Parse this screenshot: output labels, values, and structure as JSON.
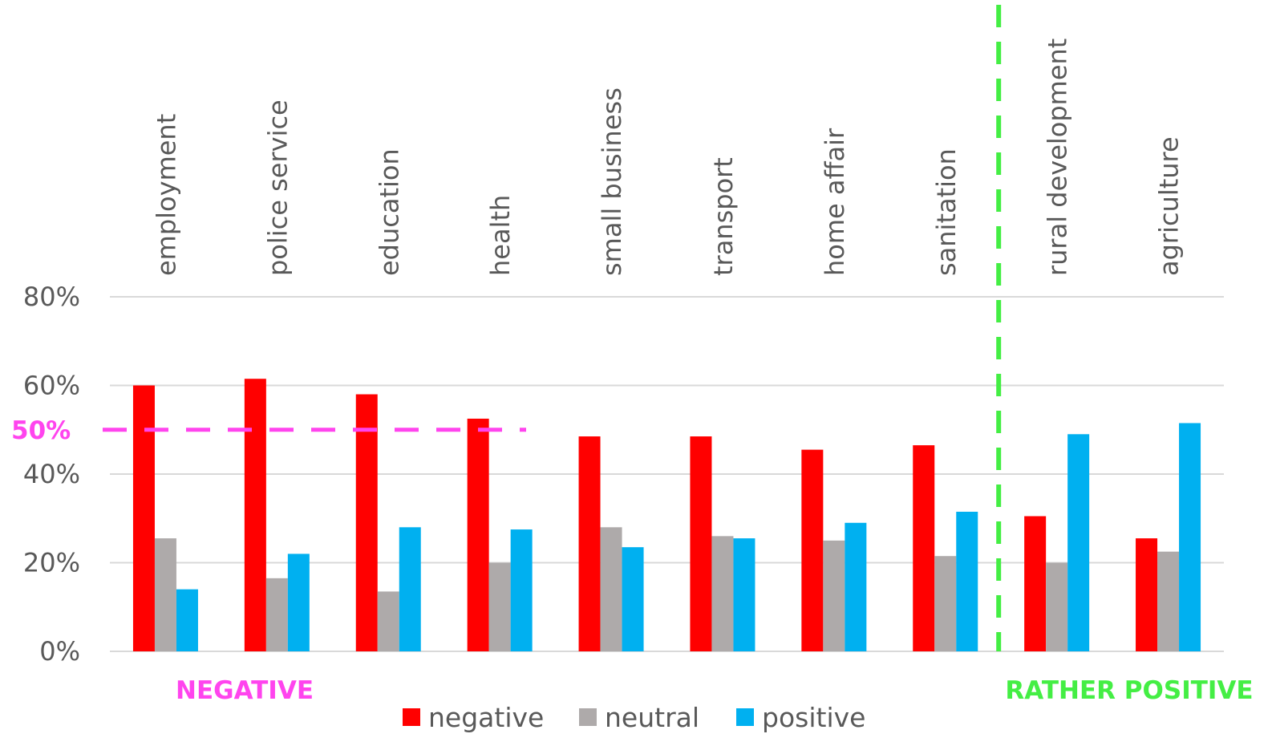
{
  "chart_data": {
    "type": "bar",
    "categories": [
      "employment",
      "police service",
      "education",
      "health",
      "small business",
      "transport",
      "home affair",
      "sanitation",
      "rural development",
      "agriculture"
    ],
    "series": [
      {
        "name": "negative",
        "color": "#ff0000",
        "values": [
          60,
          61.5,
          58,
          52.5,
          48.5,
          48.5,
          45.5,
          46.5,
          30.5,
          25.5
        ]
      },
      {
        "name": "neutral",
        "color": "#aeaaaa",
        "values": [
          25.5,
          16.5,
          13.5,
          20,
          28,
          26,
          25,
          21.5,
          20,
          22.5
        ]
      },
      {
        "name": "positive",
        "color": "#00b0f0",
        "values": [
          14,
          22,
          28,
          27.5,
          23.5,
          25.5,
          29,
          31.5,
          49,
          51.5
        ]
      }
    ],
    "yticks": [
      "0%",
      "20%",
      "40%",
      "60%",
      "80%"
    ],
    "ylim": [
      0,
      80
    ],
    "grid": true,
    "legend_position": "bottom",
    "threshold": {
      "value": 50,
      "label": "50%",
      "color": "#ff44ee"
    },
    "divider": {
      "between": [
        "sanitation",
        "rural development"
      ],
      "color": "#44ee44"
    },
    "annotations": [
      {
        "text": "NEGATIVE",
        "color": "#ff44ee"
      },
      {
        "text": "RATHER POSITIVE",
        "color": "#44ee44"
      }
    ]
  }
}
